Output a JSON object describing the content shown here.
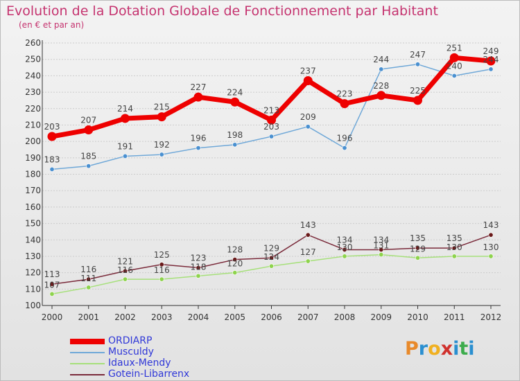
{
  "header": {
    "title": "Evolution de la Dotation Globale de Fonctionnement par Habitant",
    "subtitle": "(en € et par an)"
  },
  "colors": {
    "title": "#c5336f",
    "legend_text": "#2f37d8",
    "axis": "#333333",
    "grid": "#cccccc"
  },
  "chart_data": {
    "type": "line",
    "title": "Evolution de la Dotation Globale de Fonctionnement par Habitant",
    "subtitle": "(en € et par an)",
    "x": [
      "2000",
      "2001",
      "2002",
      "2003",
      "2004",
      "2005",
      "2006",
      "2007",
      "2008",
      "2009",
      "2010",
      "2011",
      "2012"
    ],
    "ylim": [
      100,
      260
    ],
    "yticks": [
      100,
      110,
      120,
      130,
      140,
      150,
      160,
      170,
      180,
      190,
      200,
      210,
      220,
      230,
      240,
      250,
      260
    ],
    "grid": "horizontal",
    "legend_position": "bottom-left",
    "series": [
      {
        "name": "ORDIARP",
        "color": "#ee0000",
        "marker": "#ee0000",
        "width": 7,
        "values": [
          203,
          207,
          214,
          215,
          227,
          224,
          213,
          237,
          223,
          228,
          225,
          251,
          249
        ]
      },
      {
        "name": "Musculdy",
        "color": "#6fa8d8",
        "marker": "#4a90d0",
        "width": 1.5,
        "values": [
          183,
          185,
          191,
          192,
          196,
          198,
          203,
          209,
          196,
          244,
          247,
          240,
          244
        ]
      },
      {
        "name": "Idaux-Mendy",
        "color": "#a6e07a",
        "marker": "#8ed34d",
        "width": 1.5,
        "values": [
          107,
          111,
          116,
          116,
          118,
          120,
          124,
          127,
          130,
          131,
          129,
          130,
          130
        ]
      },
      {
        "name": "Gotein-Libarrenx",
        "color": "#7a2a3a",
        "marker": "#6a1a1a",
        "width": 1.5,
        "values": [
          113,
          116,
          121,
          125,
          123,
          128,
          129,
          143,
          134,
          134,
          135,
          135,
          143
        ]
      }
    ]
  },
  "logo": {
    "letters": [
      "P",
      "r",
      "o",
      "x",
      "i",
      "t",
      "i"
    ],
    "colors": [
      "#e8892a",
      "#2a8fd0",
      "#f0b020",
      "#d0312d",
      "#2a8fd0",
      "#3cac4c",
      "#2a8fd0"
    ]
  }
}
